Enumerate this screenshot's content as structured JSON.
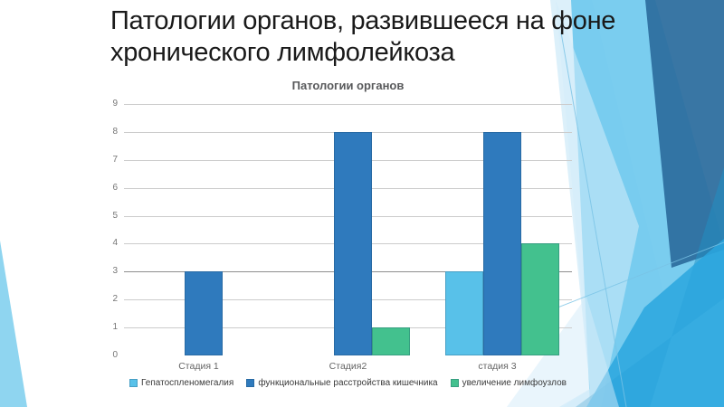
{
  "slide": {
    "title": "Патологии органов, развившееся на фоне хронического лимфолейкоза"
  },
  "chart_data": {
    "type": "bar",
    "title": "Патологии органов",
    "categories": [
      "Стадия 1",
      "Стадия2",
      "стадия 3"
    ],
    "series": [
      {
        "name": "Гепатоспленомегалия",
        "color": "#58c1e9",
        "values": [
          0,
          0,
          3
        ]
      },
      {
        "name": "функциональные расстройства кишечника",
        "color": "#2f7abd",
        "values": [
          3,
          8,
          8
        ]
      },
      {
        "name": "увеличение лимфоузлов",
        "color": "#43c18e",
        "values": [
          0,
          1,
          4
        ]
      }
    ],
    "xlabel": "",
    "ylabel": "",
    "ylim": [
      0,
      9
    ],
    "yticks": [
      0,
      1,
      2,
      3,
      4,
      5,
      6,
      7,
      8,
      9
    ],
    "grid": true,
    "legend_position": "bottom"
  },
  "theme": {
    "slide_background": "#ffffff",
    "title_color": "#1a1a1a",
    "chart_title_color": "#58595b",
    "axis_label_color": "#757575",
    "category_label_color": "#666666",
    "legend_text_color": "#3a3a3a",
    "gridline_color": "#cccccc",
    "gridline_emphasis_color": "#8f8f8f",
    "deco_pale": "#d3ecf9",
    "deco_light": "#6fc9ee",
    "deco_dark": "#2e6f9f",
    "deco_bright": "#2aa6de",
    "deco_teal": "#1f8fc4",
    "deco_left_wedge": "#8fd5f0",
    "deco_line": "#79c3e6"
  }
}
